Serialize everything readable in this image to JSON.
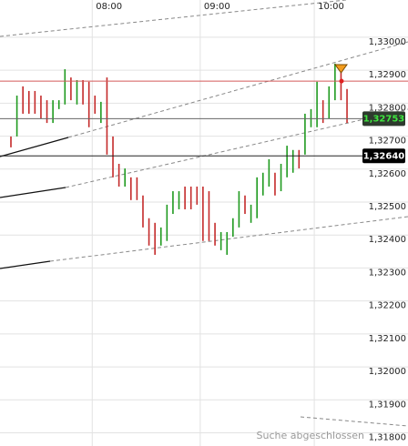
{
  "chart_data": {
    "type": "ohlc",
    "categories": [
      null,
      null,
      null,
      null,
      null,
      null,
      null,
      null,
      null,
      null,
      null,
      null,
      null,
      null,
      "08:00",
      null,
      null,
      null,
      null,
      null,
      null,
      null,
      null,
      null,
      null,
      null,
      null,
      null,
      null,
      null,
      null,
      null,
      "09:00",
      null,
      null,
      null,
      null,
      null,
      null,
      null,
      null,
      null,
      null,
      null,
      null,
      null,
      null,
      null,
      null,
      null,
      null,
      "10:00",
      null,
      null,
      null,
      null,
      null
    ],
    "high": [
      1.32699,
      1.32823,
      1.32851,
      1.32837,
      1.32837,
      1.32823,
      1.32809,
      1.32809,
      1.32809,
      1.32903,
      1.32878,
      1.3287,
      1.3287,
      1.32865,
      1.32823,
      1.32804,
      1.32878,
      1.32699,
      1.32616,
      1.32602,
      1.32575,
      1.32575,
      1.3252,
      1.32451,
      1.32437,
      1.32423,
      1.32492,
      1.32533,
      1.32533,
      1.32547,
      1.32547,
      1.32547,
      1.32547,
      1.32533,
      1.32437,
      1.32409,
      1.32409,
      1.32451,
      1.32533,
      1.3252,
      1.32492,
      1.32575,
      1.32589,
      1.3263,
      1.32589,
      1.32616,
      1.32671,
      1.32658,
      1.32658,
      1.32768,
      1.32782,
      1.32865,
      1.32809,
      1.32851,
      1.3292,
      1.32892,
      1.32843
    ],
    "low": [
      1.32666,
      1.32699,
      1.32768,
      1.32768,
      1.32768,
      1.32754,
      1.3274,
      1.3274,
      1.32782,
      1.32796,
      1.32809,
      1.32796,
      1.32796,
      1.32727,
      1.32768,
      1.3274,
      1.32644,
      1.32575,
      1.32547,
      1.32547,
      1.32506,
      1.32506,
      1.32423,
      1.32368,
      1.3234,
      1.32368,
      1.32382,
      1.32464,
      1.32478,
      1.32478,
      1.32478,
      1.32492,
      1.32382,
      1.32382,
      1.32368,
      1.32354,
      1.3234,
      1.32395,
      1.32423,
      1.32464,
      1.32437,
      1.32451,
      1.3252,
      1.32547,
      1.3252,
      1.32533,
      1.32575,
      1.32589,
      1.32602,
      1.32644,
      1.32727,
      1.32727,
      1.3274,
      1.32754,
      1.32809,
      1.32809,
      1.3274
    ],
    "directions": [
      "down",
      "up",
      "down",
      "down",
      "down",
      "down",
      "down",
      "up",
      "up",
      "up",
      "down",
      "up",
      "down",
      "down",
      "down",
      "up",
      "down",
      "down",
      "down",
      "up",
      "down",
      "down",
      "down",
      "down",
      "down",
      "up",
      "up",
      "up",
      "up",
      "down",
      "down",
      "down",
      "down",
      "down",
      "down",
      "up",
      "up",
      "up",
      "up",
      "down",
      "up",
      "up",
      "up",
      "up",
      "down",
      "up",
      "up",
      "up",
      "down",
      "up",
      "up",
      "up",
      "down",
      "up",
      "up",
      "down",
      "down"
    ],
    "up_color": "#1f9a1f",
    "down_color": "#c42a2a",
    "ylim": [
      1.3176,
      1.33113
    ],
    "yticks": [
      {
        "value": 1.33,
        "label": "1,33000"
      },
      {
        "value": 1.329,
        "label": "1,32900"
      },
      {
        "value": 1.328,
        "label": "1,32800"
      },
      {
        "value": 1.327,
        "label": "1,32700"
      },
      {
        "value": 1.326,
        "label": "1,32600"
      },
      {
        "value": 1.325,
        "label": "1,32500"
      },
      {
        "value": 1.324,
        "label": "1,32400"
      },
      {
        "value": 1.323,
        "label": "1,32300"
      },
      {
        "value": 1.322,
        "label": "1,32200"
      },
      {
        "value": 1.321,
        "label": "1,32100"
      },
      {
        "value": 1.32,
        "label": "1,32000"
      },
      {
        "value": 1.319,
        "label": "1,31900"
      },
      {
        "value": 1.318,
        "label": "1,31800"
      }
    ],
    "grid": true,
    "alert_line": 1.32867,
    "price_lines": [
      {
        "value": 1.32753,
        "label": "1,32753",
        "color": "#3ee63e",
        "box": "#2e3a2e",
        "line": "#666666"
      },
      {
        "value": 1.3264,
        "label": "1,32640",
        "color": "#ffffff",
        "box": "#000000",
        "line": "#222222"
      }
    ],
    "status": "Suche abgeschlossen"
  }
}
